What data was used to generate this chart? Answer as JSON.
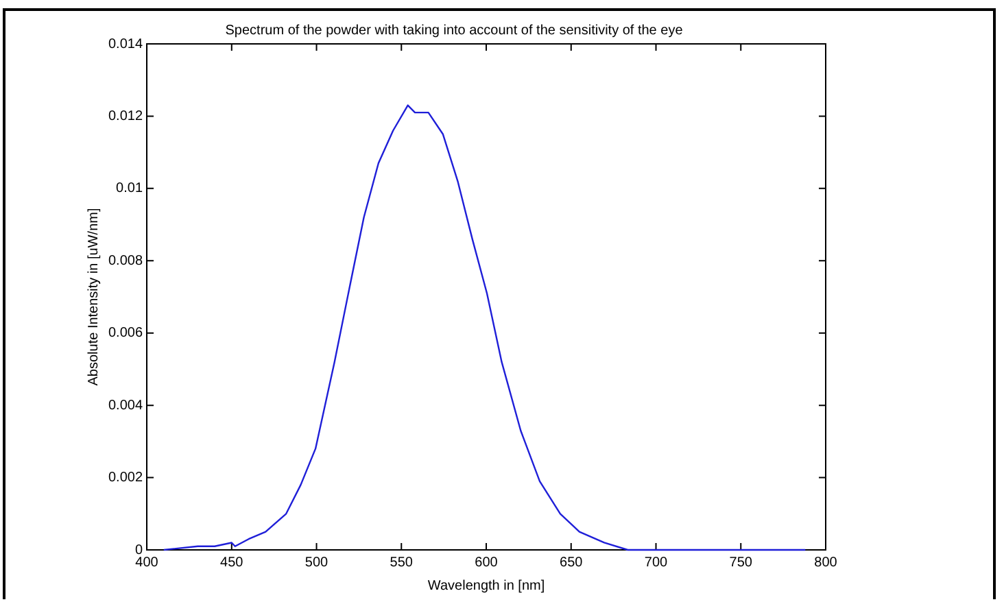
{
  "chart_data": {
    "type": "line",
    "title": "Spectrum of the powder with taking into account of the sensitivity of the eye",
    "xlabel": "Wavelength in [nm]",
    "ylabel": "Absolute Intensity in [uW/nm]",
    "x": [
      410,
      430,
      440,
      450,
      452,
      460,
      470,
      482.1,
      490.7,
      499.4,
      510.6,
      519.2,
      527.9,
      536.5,
      545.1,
      553.8,
      558,
      565.9,
      574.5,
      583.2,
      591.8,
      600.4,
      609.1,
      620.3,
      631.5,
      643.6,
      654.9,
      669.5,
      683.4,
      700,
      750,
      788
    ],
    "series": [
      {
        "color": "#1f1fd8",
        "values": [
          0,
          0.0001,
          0.0001,
          0.0002,
          0.0001,
          0.0003,
          0.0005,
          0.001,
          0.0018,
          0.0028,
          0.0052,
          0.0072,
          0.0092,
          0.0107,
          0.0116,
          0.0123,
          0.0121,
          0.0121,
          0.0115,
          0.0102,
          0.0086,
          0.0071,
          0.0052,
          0.0033,
          0.0019,
          0.001,
          0.0005,
          0.0002,
          0,
          0,
          0,
          0
        ]
      }
    ],
    "xlim": [
      400,
      800
    ],
    "xticks": [
      400,
      450,
      500,
      550,
      600,
      650,
      700,
      750,
      800
    ],
    "ylim": [
      0,
      0.014
    ],
    "yticks": [
      0,
      0.002,
      0.004,
      0.006,
      0.008,
      0.01,
      0.012,
      0.014
    ],
    "grid": false,
    "legend": false,
    "marker": "none",
    "line_style": "solid"
  }
}
